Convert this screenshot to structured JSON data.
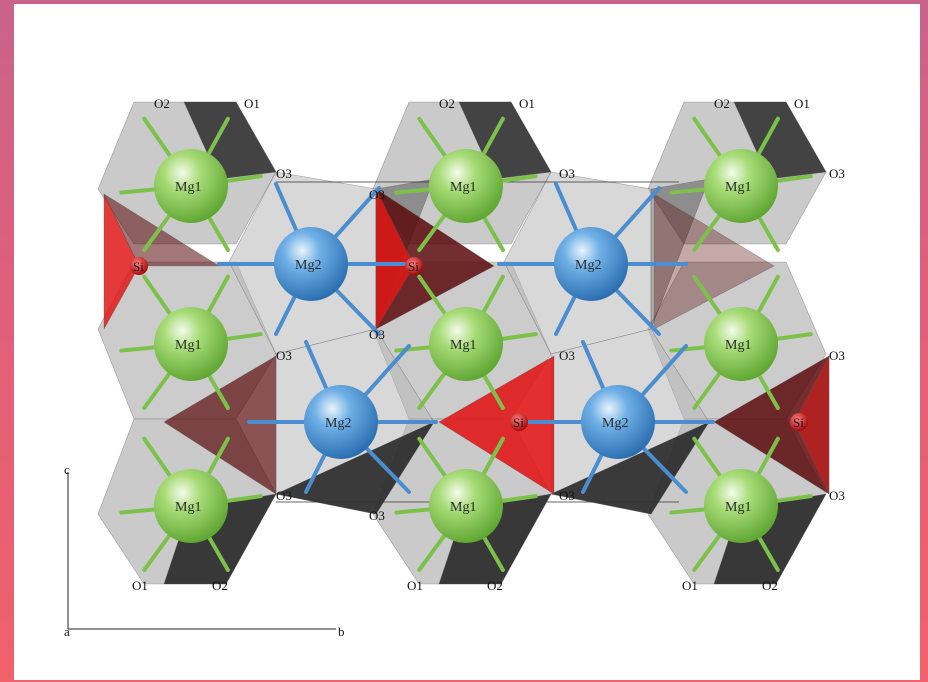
{
  "atom_labels": {
    "mg1": "Mg1",
    "mg2": "Mg2",
    "si": "Si",
    "o1": "O1",
    "o2": "O2",
    "o3": "O3"
  },
  "axes": {
    "c": "c",
    "a": "a",
    "b": "b"
  },
  "colors": {
    "mg1_sphere": "#8fcf5a",
    "mg2_sphere": "#4f95d1",
    "si_tetrahedron": "#e01818",
    "si_tetrahedron_dark": "#5a0a0a",
    "octahedron_light": "#b8b8b8",
    "octahedron_dark": "#1e1e1e",
    "bond_mg1": "#7cc24a",
    "bond_mg2": "#4a8ed0",
    "background": "#ffffff"
  }
}
